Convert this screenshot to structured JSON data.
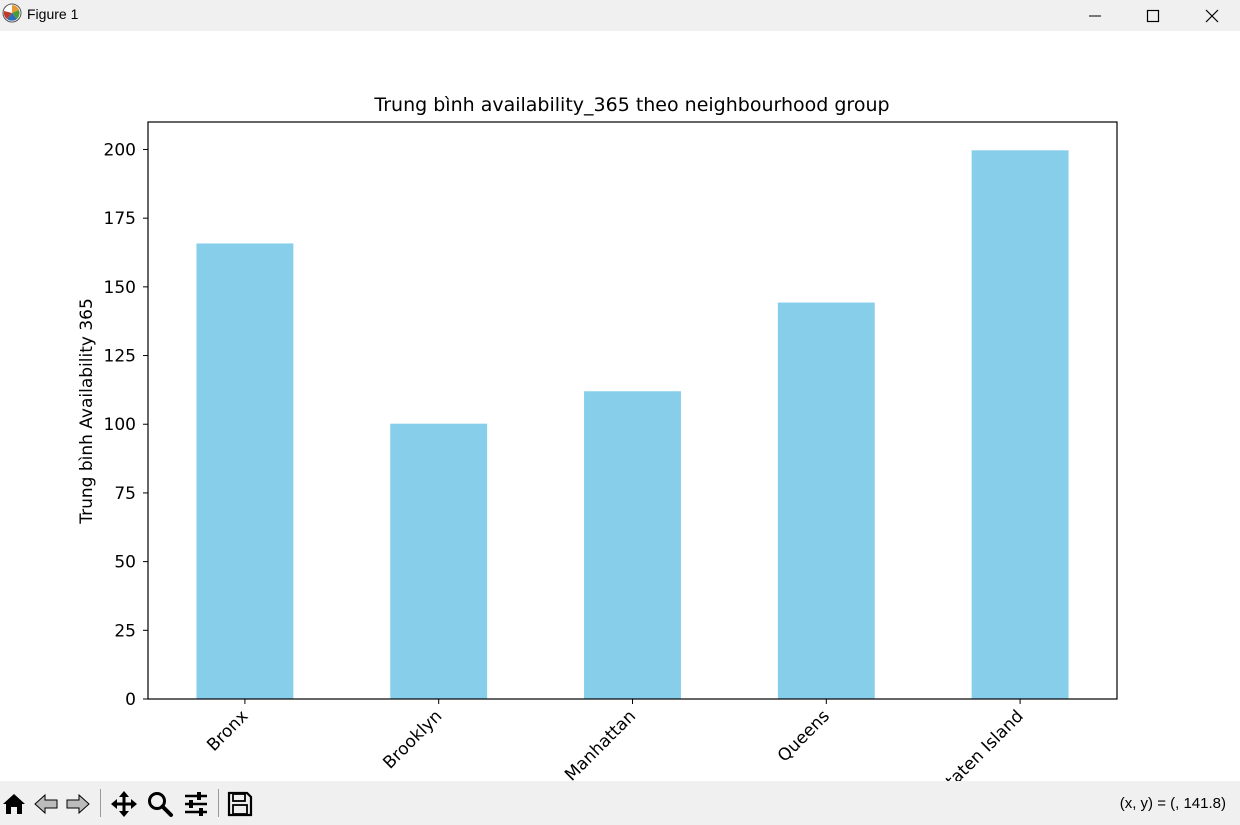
{
  "window": {
    "title": "Figure 1",
    "icon": "matplotlib-logo-icon",
    "controls": [
      "minimize-icon",
      "maximize-icon",
      "close-icon"
    ]
  },
  "chart_data": {
    "type": "bar",
    "title": "Trung bình availability_365 theo neighbourhood group",
    "xlabel": "",
    "ylabel": "Trung bình Availability 365",
    "categories": [
      "Bronx",
      "Brooklyn",
      "Manhattan",
      "Queens",
      "Staten Island"
    ],
    "values": [
      165.8,
      100.2,
      112.0,
      144.3,
      199.7
    ],
    "ylim": [
      0,
      210
    ],
    "yticks": [
      0,
      25,
      50,
      75,
      100,
      125,
      150,
      175,
      200
    ],
    "xtick_rotation": 45,
    "bar_color": "#87ceeb",
    "grid": false,
    "legend": "none"
  },
  "toolbar": {
    "tools": [
      "home-icon",
      "back-arrow-icon",
      "forward-arrow-icon",
      "pan-move-icon",
      "zoom-magnifier-icon",
      "configure-subplots-icon",
      "save-floppy-icon"
    ],
    "coordinates": "(x, y) = (, 141.8)"
  }
}
